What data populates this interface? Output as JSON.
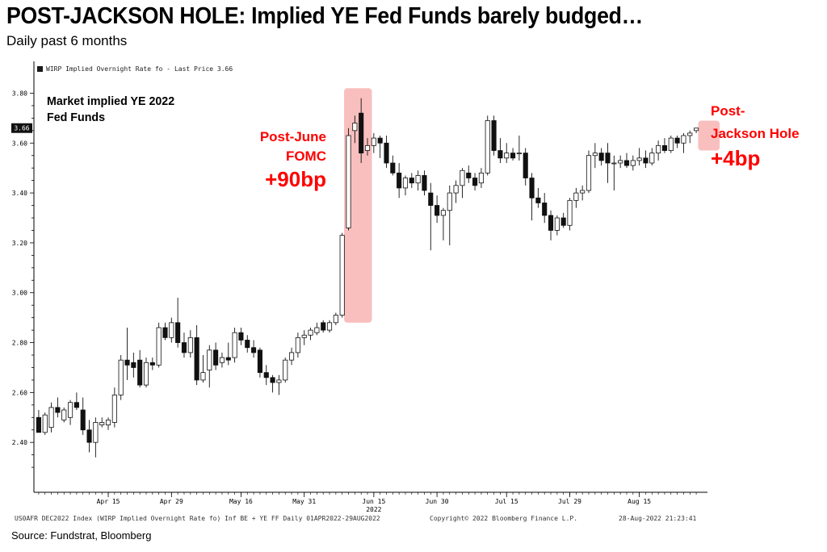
{
  "header": {
    "title": "POST-JACKSON HOLE: Implied YE Fed Funds barely budged…",
    "subtitle": "Daily past 6 months"
  },
  "legend": {
    "label": "WIRP Implied Overnight Rate fo - Last Price 3.66"
  },
  "annotations": {
    "market_line1": "Market implied YE 2022",
    "market_line2": "Fed Funds",
    "june_line1": "Post-June",
    "june_line2": "FOMC",
    "june_change": "+90bp",
    "jackson_line1": "Post-",
    "jackson_line2": "Jackson Hole",
    "jackson_change": "+4bp"
  },
  "footer": {
    "left": "US0AFR DEC2022 Index (WIRP Implied Overnight Rate fo) Inf BE + YE FF  Daily 01APR2022-29AUG2022",
    "middle": "Copyright© 2022 Bloomberg Finance L.P.",
    "right": "28-Aug-2022 21:23:41",
    "source": "Source: Fundstrat, Bloomberg"
  },
  "colors": {
    "up_candle": "#ffffff",
    "down_candle": "#111111",
    "highlight": "#f8b4b4",
    "annotation_red": "#ff0000"
  },
  "chart_data": {
    "type": "candlestick",
    "title": "POST-JACKSON HOLE: Implied YE Fed Funds barely budged…",
    "ylim": [
      2.2,
      3.85
    ],
    "yticks": [
      2.4,
      2.6,
      2.8,
      3.0,
      3.2,
      3.4,
      3.6,
      3.8
    ],
    "ytick_labels": [
      "2.40",
      "2.60",
      "2.80",
      "3.00",
      "3.20",
      "3.40",
      "3.60",
      "3.80"
    ],
    "last_price_label": "3.66",
    "last_price": 3.66,
    "xtick_labels": [
      "Apr 15",
      "Apr 29",
      "May 16",
      "May 31",
      "Jun 15",
      "Jun 30",
      "Jul 15",
      "Jul 29",
      "Aug 15"
    ],
    "xtick_index": [
      11,
      21,
      32,
      42,
      53,
      63,
      74,
      84,
      95
    ],
    "xtick_sublabel": "2022",
    "highlights": [
      {
        "from_index": 49,
        "to_index": 52,
        "ylow": 2.88,
        "yhigh": 3.82
      },
      {
        "from_index": 105,
        "to_index": 107,
        "ylow": 3.57,
        "yhigh": 3.69
      }
    ],
    "candles": [
      {
        "o": 2.5,
        "h": 2.53,
        "l": 2.45,
        "c": 2.44
      },
      {
        "o": 2.44,
        "h": 2.52,
        "l": 2.43,
        "c": 2.51
      },
      {
        "o": 2.46,
        "h": 2.56,
        "l": 2.44,
        "c": 2.54
      },
      {
        "o": 2.54,
        "h": 2.58,
        "l": 2.5,
        "c": 2.52
      },
      {
        "o": 2.49,
        "h": 2.54,
        "l": 2.48,
        "c": 2.53
      },
      {
        "o": 2.5,
        "h": 2.57,
        "l": 2.47,
        "c": 2.56
      },
      {
        "o": 2.56,
        "h": 2.6,
        "l": 2.53,
        "c": 2.54
      },
      {
        "o": 2.53,
        "h": 2.58,
        "l": 2.43,
        "c": 2.45
      },
      {
        "o": 2.45,
        "h": 2.49,
        "l": 2.36,
        "c": 2.4
      },
      {
        "o": 2.4,
        "h": 2.5,
        "l": 2.34,
        "c": 2.48
      },
      {
        "o": 2.47,
        "h": 2.5,
        "l": 2.46,
        "c": 2.48
      },
      {
        "o": 2.47,
        "h": 2.5,
        "l": 2.45,
        "c": 2.49
      },
      {
        "o": 2.48,
        "h": 2.62,
        "l": 2.46,
        "c": 2.59
      },
      {
        "o": 2.59,
        "h": 2.75,
        "l": 2.57,
        "c": 2.73
      },
      {
        "o": 2.73,
        "h": 2.86,
        "l": 2.65,
        "c": 2.71
      },
      {
        "o": 2.72,
        "h": 2.76,
        "l": 2.66,
        "c": 2.7
      },
      {
        "o": 2.73,
        "h": 2.77,
        "l": 2.62,
        "c": 2.63
      },
      {
        "o": 2.63,
        "h": 2.74,
        "l": 2.62,
        "c": 2.72
      },
      {
        "o": 2.72,
        "h": 2.74,
        "l": 2.69,
        "c": 2.71
      },
      {
        "o": 2.71,
        "h": 2.88,
        "l": 2.7,
        "c": 2.86
      },
      {
        "o": 2.86,
        "h": 2.88,
        "l": 2.81,
        "c": 2.82
      },
      {
        "o": 2.82,
        "h": 2.9,
        "l": 2.8,
        "c": 2.88
      },
      {
        "o": 2.88,
        "h": 2.98,
        "l": 2.78,
        "c": 2.8
      },
      {
        "o": 2.8,
        "h": 2.84,
        "l": 2.74,
        "c": 2.76
      },
      {
        "o": 2.76,
        "h": 2.85,
        "l": 2.74,
        "c": 2.82
      },
      {
        "o": 2.82,
        "h": 2.87,
        "l": 2.63,
        "c": 2.65
      },
      {
        "o": 2.65,
        "h": 2.75,
        "l": 2.64,
        "c": 2.68
      },
      {
        "o": 2.69,
        "h": 2.79,
        "l": 2.62,
        "c": 2.77
      },
      {
        "o": 2.77,
        "h": 2.8,
        "l": 2.69,
        "c": 2.71
      },
      {
        "o": 2.72,
        "h": 2.76,
        "l": 2.7,
        "c": 2.74
      },
      {
        "o": 2.74,
        "h": 2.8,
        "l": 2.71,
        "c": 2.73
      },
      {
        "o": 2.74,
        "h": 2.86,
        "l": 2.72,
        "c": 2.84
      },
      {
        "o": 2.84,
        "h": 2.86,
        "l": 2.79,
        "c": 2.81
      },
      {
        "o": 2.81,
        "h": 2.83,
        "l": 2.76,
        "c": 2.78
      },
      {
        "o": 2.78,
        "h": 2.81,
        "l": 2.74,
        "c": 2.76
      },
      {
        "o": 2.77,
        "h": 2.78,
        "l": 2.66,
        "c": 2.68
      },
      {
        "o": 2.68,
        "h": 2.71,
        "l": 2.63,
        "c": 2.66
      },
      {
        "o": 2.66,
        "h": 2.67,
        "l": 2.6,
        "c": 2.64
      },
      {
        "o": 2.64,
        "h": 2.67,
        "l": 2.59,
        "c": 2.65
      },
      {
        "o": 2.65,
        "h": 2.74,
        "l": 2.64,
        "c": 2.73
      },
      {
        "o": 2.73,
        "h": 2.78,
        "l": 2.71,
        "c": 2.76
      },
      {
        "o": 2.76,
        "h": 2.84,
        "l": 2.74,
        "c": 2.82
      },
      {
        "o": 2.82,
        "h": 2.85,
        "l": 2.79,
        "c": 2.83
      },
      {
        "o": 2.83,
        "h": 2.86,
        "l": 2.81,
        "c": 2.85
      },
      {
        "o": 2.84,
        "h": 2.88,
        "l": 2.83,
        "c": 2.86
      },
      {
        "o": 2.88,
        "h": 2.89,
        "l": 2.84,
        "c": 2.85
      },
      {
        "o": 2.85,
        "h": 2.89,
        "l": 2.84,
        "c": 2.88
      },
      {
        "o": 2.88,
        "h": 2.92,
        "l": 2.87,
        "c": 2.91
      },
      {
        "o": 2.91,
        "h": 3.24,
        "l": 2.9,
        "c": 3.23
      },
      {
        "o": 3.26,
        "h": 3.66,
        "l": 3.25,
        "c": 3.63
      },
      {
        "o": 3.65,
        "h": 3.71,
        "l": 3.6,
        "c": 3.68
      },
      {
        "o": 3.72,
        "h": 3.78,
        "l": 3.52,
        "c": 3.56
      },
      {
        "o": 3.57,
        "h": 3.62,
        "l": 3.55,
        "c": 3.59
      },
      {
        "o": 3.59,
        "h": 3.64,
        "l": 3.56,
        "c": 3.62
      },
      {
        "o": 3.62,
        "h": 3.63,
        "l": 3.54,
        "c": 3.6
      },
      {
        "o": 3.6,
        "h": 3.63,
        "l": 3.5,
        "c": 3.52
      },
      {
        "o": 3.52,
        "h": 3.55,
        "l": 3.47,
        "c": 3.48
      },
      {
        "o": 3.48,
        "h": 3.52,
        "l": 3.38,
        "c": 3.42
      },
      {
        "o": 3.42,
        "h": 3.47,
        "l": 3.39,
        "c": 3.46
      },
      {
        "o": 3.46,
        "h": 3.48,
        "l": 3.42,
        "c": 3.44
      },
      {
        "o": 3.44,
        "h": 3.49,
        "l": 3.41,
        "c": 3.47
      },
      {
        "o": 3.47,
        "h": 3.49,
        "l": 3.39,
        "c": 3.41
      },
      {
        "o": 3.4,
        "h": 3.44,
        "l": 3.17,
        "c": 3.35
      },
      {
        "o": 3.35,
        "h": 3.39,
        "l": 3.28,
        "c": 3.31
      },
      {
        "o": 3.31,
        "h": 3.34,
        "l": 3.21,
        "c": 3.33
      },
      {
        "o": 3.33,
        "h": 3.43,
        "l": 3.19,
        "c": 3.4
      },
      {
        "o": 3.4,
        "h": 3.45,
        "l": 3.36,
        "c": 3.43
      },
      {
        "o": 3.43,
        "h": 3.5,
        "l": 3.38,
        "c": 3.49
      },
      {
        "o": 3.48,
        "h": 3.51,
        "l": 3.44,
        "c": 3.46
      },
      {
        "o": 3.46,
        "h": 3.48,
        "l": 3.41,
        "c": 3.43
      },
      {
        "o": 3.44,
        "h": 3.5,
        "l": 3.42,
        "c": 3.48
      },
      {
        "o": 3.48,
        "h": 3.71,
        "l": 3.47,
        "c": 3.69
      },
      {
        "o": 3.69,
        "h": 3.71,
        "l": 3.55,
        "c": 3.57
      },
      {
        "o": 3.57,
        "h": 3.62,
        "l": 3.52,
        "c": 3.54
      },
      {
        "o": 3.54,
        "h": 3.6,
        "l": 3.52,
        "c": 3.56
      },
      {
        "o": 3.56,
        "h": 3.58,
        "l": 3.53,
        "c": 3.54
      },
      {
        "o": 3.56,
        "h": 3.63,
        "l": 3.53,
        "c": 3.56
      },
      {
        "o": 3.56,
        "h": 3.58,
        "l": 3.43,
        "c": 3.46
      },
      {
        "o": 3.46,
        "h": 3.48,
        "l": 3.29,
        "c": 3.38
      },
      {
        "o": 3.38,
        "h": 3.42,
        "l": 3.34,
        "c": 3.36
      },
      {
        "o": 3.36,
        "h": 3.4,
        "l": 3.28,
        "c": 3.31
      },
      {
        "o": 3.31,
        "h": 3.33,
        "l": 3.21,
        "c": 3.25
      },
      {
        "o": 3.25,
        "h": 3.31,
        "l": 3.23,
        "c": 3.3
      },
      {
        "o": 3.3,
        "h": 3.32,
        "l": 3.26,
        "c": 3.27
      },
      {
        "o": 3.27,
        "h": 3.38,
        "l": 3.25,
        "c": 3.37
      },
      {
        "o": 3.37,
        "h": 3.42,
        "l": 3.34,
        "c": 3.4
      },
      {
        "o": 3.4,
        "h": 3.43,
        "l": 3.37,
        "c": 3.41
      },
      {
        "o": 3.41,
        "h": 3.57,
        "l": 3.4,
        "c": 3.55
      },
      {
        "o": 3.55,
        "h": 3.6,
        "l": 3.5,
        "c": 3.56
      },
      {
        "o": 3.56,
        "h": 3.58,
        "l": 3.51,
        "c": 3.53
      },
      {
        "o": 3.56,
        "h": 3.6,
        "l": 3.44,
        "c": 3.52
      },
      {
        "o": 3.52,
        "h": 3.55,
        "l": 3.41,
        "c": 3.52
      },
      {
        "o": 3.52,
        "h": 3.55,
        "l": 3.5,
        "c": 3.53
      },
      {
        "o": 3.53,
        "h": 3.56,
        "l": 3.5,
        "c": 3.51
      },
      {
        "o": 3.51,
        "h": 3.55,
        "l": 3.49,
        "c": 3.53
      },
      {
        "o": 3.53,
        "h": 3.58,
        "l": 3.51,
        "c": 3.54
      },
      {
        "o": 3.54,
        "h": 3.57,
        "l": 3.5,
        "c": 3.52
      },
      {
        "o": 3.52,
        "h": 3.58,
        "l": 3.51,
        "c": 3.56
      },
      {
        "o": 3.56,
        "h": 3.61,
        "l": 3.53,
        "c": 3.59
      },
      {
        "o": 3.59,
        "h": 3.62,
        "l": 3.56,
        "c": 3.57
      },
      {
        "o": 3.57,
        "h": 3.63,
        "l": 3.56,
        "c": 3.62
      },
      {
        "o": 3.62,
        "h": 3.63,
        "l": 3.58,
        "c": 3.6
      },
      {
        "o": 3.6,
        "h": 3.64,
        "l": 3.56,
        "c": 3.63
      },
      {
        "o": 3.63,
        "h": 3.65,
        "l": 3.6,
        "c": 3.64
      },
      {
        "o": 3.65,
        "h": 3.66,
        "l": 3.64,
        "c": 3.66
      }
    ]
  }
}
